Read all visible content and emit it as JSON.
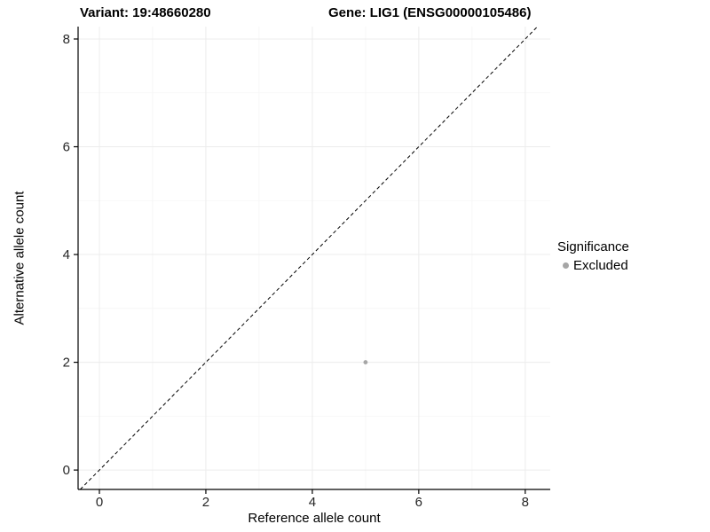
{
  "chart_data": {
    "type": "scatter",
    "title_left": "Variant: 19:48660280",
    "title_right": "Gene: LIG1 (ENSG00000105486)",
    "xlabel": "Reference allele count",
    "ylabel": "Alternative allele count",
    "xlim": [
      -0.4,
      8.47
    ],
    "ylim": [
      -0.36,
      8.23
    ],
    "xticks": [
      0,
      2,
      4,
      6,
      8
    ],
    "yticks": [
      0,
      2,
      4,
      6,
      8
    ],
    "minor_xticks": [
      1,
      3,
      5,
      7
    ],
    "minor_yticks": [
      1,
      3,
      5,
      7
    ],
    "grid": true,
    "points": [
      {
        "x": 5,
        "y": 2,
        "series": "Excluded"
      }
    ],
    "identity_line": {
      "style": "dashed",
      "equation": "y = x"
    },
    "legend": {
      "title": "Significance",
      "position": "right",
      "entries": [
        {
          "label": "Excluded",
          "color": "#a6a6a6"
        }
      ]
    },
    "colors": {
      "point": "#a6a6a6",
      "major_grid": "#ececec",
      "minor_grid": "#f5f5f5",
      "axis_line": "#000000",
      "tick_text": "#262626",
      "identity_line": "#000000",
      "background": "#ffffff"
    }
  }
}
